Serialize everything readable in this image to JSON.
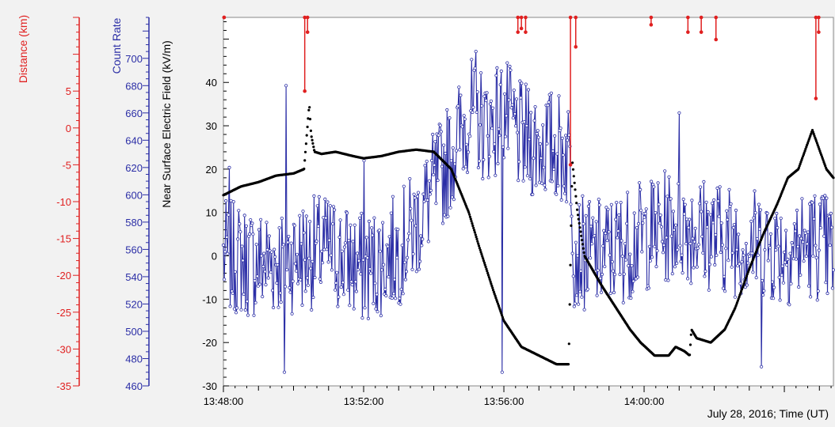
{
  "chart_data": {
    "type": "line",
    "xlabel": "July 28, 2016; Time (UT)",
    "x_ticks": [
      "13:48:00",
      "13:52:00",
      "13:56:00",
      "14:00:00"
    ],
    "x_range_minutes": [
      0,
      17.4
    ],
    "axes": {
      "distance": {
        "label": "Distance (km)",
        "color": "#e02020",
        "ylim": [
          -35,
          15
        ],
        "ticks": [
          "5",
          "0",
          "-5",
          "-10",
          "-15",
          "-20",
          "-25",
          "-30",
          "-35"
        ]
      },
      "count_rate": {
        "label": "Count Rate",
        "color": "#2b2ea6",
        "ylim": [
          460,
          730
        ],
        "ticks": [
          "700",
          "680",
          "660",
          "640",
          "620",
          "600",
          "580",
          "560",
          "540",
          "520",
          "500",
          "480",
          "460"
        ]
      },
      "efield": {
        "label": "Near Surface Electric Field (kV/m)",
        "color": "#000000",
        "ylim": [
          -30,
          55
        ],
        "ticks": [
          "40",
          "30",
          "20",
          "10",
          "0",
          "-10",
          "-20",
          "-30"
        ]
      }
    },
    "series": [
      {
        "key": "efield",
        "axis": "efield",
        "color": "#000000",
        "style": "dots",
        "x": [
          0,
          0.5,
          1,
          1.5,
          2,
          2.3,
          2.45,
          2.5,
          2.6,
          2.8,
          3.2,
          3.7,
          4,
          4.5,
          5,
          5.5,
          6,
          6.5,
          7,
          7.3,
          7.7,
          8,
          8.5,
          9,
          9.5,
          9.85,
          9.95,
          10.1,
          10.3,
          10.8,
          11.2,
          11.6,
          11.9,
          12.3,
          12.7,
          12.9,
          13.15,
          13.3,
          13.35,
          13.5,
          13.9,
          14.3,
          14.6,
          15,
          15.4,
          15.8,
          16.1,
          16.4,
          16.8,
          17.2,
          17.4
        ],
        "y": [
          14,
          16,
          17,
          18.5,
          19,
          20,
          35,
          28,
          24,
          23.5,
          24,
          23,
          22.5,
          23,
          24,
          24.5,
          24,
          20,
          10,
          2,
          -8,
          -15,
          -21,
          -23,
          -25,
          -25,
          22,
          10,
          0,
          -7,
          -12,
          -17,
          -20,
          -23,
          -23,
          -21,
          -22,
          -23,
          -17,
          -19,
          -20,
          -17,
          -12,
          -3,
          5,
          12,
          18,
          20,
          29,
          20,
          18
        ]
      },
      {
        "key": "count",
        "axis": "count_rate",
        "color": "#2b2ea6",
        "style": "noisy-line",
        "x": [
          0,
          1,
          2,
          3,
          4,
          5,
          5.5,
          6,
          6.5,
          7,
          7.5,
          8,
          8.5,
          9,
          9.5,
          9.9,
          10,
          10.5,
          11,
          12,
          13,
          14,
          15,
          16,
          17,
          17.4
        ],
        "y": [
          555,
          550,
          555,
          560,
          545,
          560,
          578,
          605,
          630,
          660,
          650,
          660,
          640,
          638,
          635,
          630,
          560,
          555,
          558,
          570,
          580,
          570,
          565,
          560,
          565,
          555
        ],
        "noise_amplitude": 42,
        "spikes": [
          {
            "x": 0.18,
            "y": 620
          },
          {
            "x": 1.8,
            "y": 680
          },
          {
            "x": 1.75,
            "y": 470
          },
          {
            "x": 4.0,
            "y": 625
          },
          {
            "x": 7.2,
            "y": 705
          },
          {
            "x": 7.95,
            "y": 470
          },
          {
            "x": 15.35,
            "y": 474
          },
          {
            "x": 13.0,
            "y": 660
          }
        ]
      },
      {
        "key": "distance",
        "axis": "distance",
        "color": "#e02020",
        "style": "flash-markers",
        "flashes": [
          {
            "x": 0.02,
            "y_top": 15,
            "y_bottom": 15
          },
          {
            "x": 2.32,
            "y_top": 15,
            "y_bottom": 5
          },
          {
            "x": 2.4,
            "y_top": 15,
            "y_bottom": 13
          },
          {
            "x": 8.4,
            "y_top": 15,
            "y_bottom": 13
          },
          {
            "x": 8.5,
            "y_top": 15,
            "y_bottom": 13.5
          },
          {
            "x": 8.62,
            "y_top": 15,
            "y_bottom": 13
          },
          {
            "x": 9.9,
            "y_top": 15,
            "y_bottom": -5
          },
          {
            "x": 10.05,
            "y_top": 15,
            "y_bottom": 11
          },
          {
            "x": 12.2,
            "y_top": 15,
            "y_bottom": 14
          },
          {
            "x": 13.25,
            "y_top": 15,
            "y_bottom": 13
          },
          {
            "x": 13.63,
            "y_top": 15,
            "y_bottom": 13
          },
          {
            "x": 14.05,
            "y_top": 15,
            "y_bottom": 12
          },
          {
            "x": 16.9,
            "y_top": 15,
            "y_bottom": 4
          },
          {
            "x": 16.98,
            "y_top": 15,
            "y_bottom": 13
          }
        ]
      }
    ],
    "grid": false
  }
}
